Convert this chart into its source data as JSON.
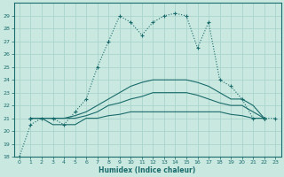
{
  "xlabel": "Humidex (Indice chaleur)",
  "xlim": [
    -0.5,
    23.5
  ],
  "ylim": [
    18,
    30
  ],
  "yticks": [
    18,
    19,
    20,
    21,
    22,
    23,
    24,
    25,
    26,
    27,
    28,
    29
  ],
  "xticks": [
    0,
    1,
    2,
    3,
    4,
    5,
    6,
    7,
    8,
    9,
    10,
    11,
    12,
    13,
    14,
    15,
    16,
    17,
    18,
    19,
    20,
    21,
    22,
    23
  ],
  "bg_color": "#c8e8e0",
  "line_color": "#1a6b6b",
  "grid_color": "#aad4cc",
  "curve_main": {
    "x": [
      0,
      1,
      2,
      3,
      4,
      5,
      6,
      7,
      8,
      9,
      10,
      11,
      12,
      13,
      14,
      15,
      16,
      17,
      18,
      19,
      20,
      21,
      22,
      23
    ],
    "y": [
      18,
      20.5,
      21,
      21,
      20.5,
      21.5,
      22.5,
      25,
      27,
      29,
      28.5,
      27.5,
      28.5,
      29,
      29.2,
      29,
      26.5,
      28.5,
      24,
      23.5,
      22.5,
      21,
      21,
      21
    ]
  },
  "curve_top": {
    "x": [
      1,
      2,
      3,
      4,
      5,
      6,
      7,
      8,
      9,
      10,
      11,
      12,
      13,
      14,
      15,
      16,
      17,
      18,
      19,
      20,
      21,
      22
    ],
    "y": [
      21,
      21,
      21,
      21,
      21.2,
      21.5,
      22,
      22.5,
      23,
      23.5,
      23.8,
      24,
      24,
      24,
      24,
      23.8,
      23.5,
      23,
      22.5,
      22.5,
      22,
      21
    ]
  },
  "curve_mid": {
    "x": [
      1,
      2,
      3,
      4,
      5,
      6,
      7,
      8,
      9,
      10,
      11,
      12,
      13,
      14,
      15,
      16,
      17,
      18,
      19,
      20,
      21,
      22
    ],
    "y": [
      21,
      21,
      21,
      21,
      21,
      21.2,
      21.5,
      22,
      22.2,
      22.5,
      22.7,
      23,
      23,
      23,
      23,
      22.8,
      22.5,
      22.2,
      22,
      22,
      21.5,
      21
    ]
  },
  "curve_bot": {
    "x": [
      1,
      2,
      3,
      4,
      5,
      6,
      7,
      8,
      9,
      10,
      11,
      12,
      13,
      14,
      15,
      16,
      17,
      18,
      19,
      20,
      21,
      22
    ],
    "y": [
      21,
      21,
      20.5,
      20.5,
      20.5,
      21,
      21,
      21.2,
      21.3,
      21.5,
      21.5,
      21.5,
      21.5,
      21.5,
      21.5,
      21.5,
      21.5,
      21.5,
      21.3,
      21.2,
      21,
      21
    ]
  }
}
